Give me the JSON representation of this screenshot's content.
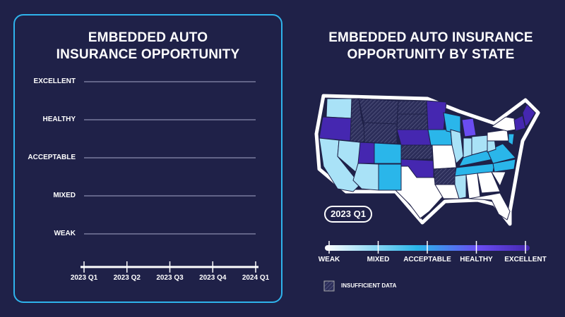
{
  "left_panel": {
    "title_line1": "EMBEDDED AUTO",
    "title_line2": "INSURANCE OPPORTUNITY"
  },
  "right_panel": {
    "title_line1": "EMBEDDED AUTO INSURANCE",
    "title_line2": "OPPORTUNITY BY STATE",
    "period_badge": "2023 Q1"
  },
  "legend": {
    "levels": [
      "WEAK",
      "MIXED",
      "ACCEPTABLE",
      "HEALTHY",
      "EXCELLENT"
    ],
    "insufficient_label": "INSUFFICIENT DATA",
    "colors": {
      "weak": "#ffffff",
      "mixed": "#a9e2f7",
      "acceptable": "#2ab6ea",
      "healthy": "#6a4cf2",
      "excellent": "#4527b0",
      "insufficient": "#2c2e5a"
    }
  },
  "chart_data": {
    "type": "line",
    "title": "EMBEDDED AUTO INSURANCE OPPORTUNITY",
    "categories": [
      "2023 Q1",
      "2023 Q2",
      "2023 Q3",
      "2023 Q4",
      "2024 Q1"
    ],
    "y_categories": [
      "WEAK",
      "MIXED",
      "ACCEPTABLE",
      "HEALTHY",
      "EXCELLENT"
    ],
    "series": [],
    "grid": true
  },
  "map_data": {
    "WA": "mixed",
    "OR": "excellent",
    "CA": "mixed",
    "NV": "mixed",
    "ID": "insufficient",
    "MT": "insufficient",
    "WY": "insufficient",
    "UT": "excellent",
    "CO": "acceptable",
    "AZ": "mixed",
    "NM": "acceptable",
    "ND": "insufficient",
    "SD": "insufficient",
    "NE": "excellent",
    "KS": "insufficient",
    "OK": "excellent",
    "TX": "weak",
    "MN": "excellent",
    "IA": "acceptable",
    "MO": "weak",
    "AR": "insufficient",
    "LA": "weak",
    "WI": "acceptable",
    "IL": "mixed",
    "MI": "healthy",
    "IN": "mixed",
    "OH": "mixed",
    "KY": "acceptable",
    "TN": "acceptable",
    "MS": "mixed",
    "AL": "weak",
    "GA": "weak",
    "FL": "weak",
    "SC": "weak",
    "NC": "acceptable",
    "VA": "acceptable",
    "WV": "mixed",
    "PA": "weak",
    "NY": "weak",
    "NJ": "acceptable",
    "NE_REGION": "excellent",
    "ME": "excellent"
  }
}
